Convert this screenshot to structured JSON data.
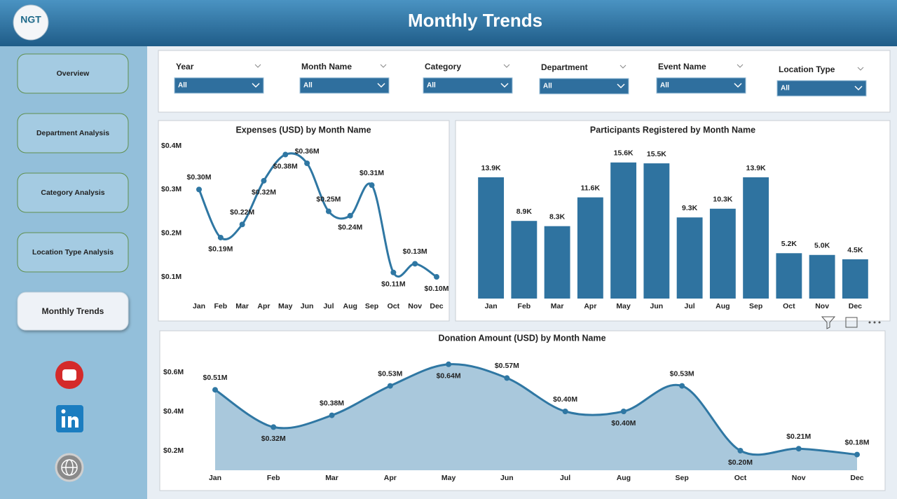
{
  "header": {
    "logo": "NGT",
    "title": "Monthly Trends"
  },
  "nav": [
    "Overview",
    "Department Analysis",
    "Category Analysis",
    "Location Type Analysis",
    "Monthly Trends"
  ],
  "filters": [
    {
      "label": "Year",
      "value": "All"
    },
    {
      "label": "Month Name",
      "value": "All"
    },
    {
      "label": "Category",
      "value": "All"
    },
    {
      "label": "Department",
      "value": "All"
    },
    {
      "label": "Event Name",
      "value": "All"
    },
    {
      "label": "Location Type",
      "value": "All"
    }
  ],
  "chart_data": [
    {
      "type": "line",
      "title": "Expenses (USD) by Month Name",
      "smooth": true,
      "color": "#2f77a3",
      "categories": [
        "Jan",
        "Feb",
        "Mar",
        "Apr",
        "May",
        "Jun",
        "Jul",
        "Aug",
        "Sep",
        "Oct",
        "Nov",
        "Dec"
      ],
      "values": [
        300000,
        190000,
        220000,
        320000,
        380000,
        360000,
        250000,
        240000,
        310000,
        110000,
        130000,
        100000
      ],
      "value_labels": [
        "$0.30M",
        "$0.19M",
        "$0.22M",
        "$0.32M",
        "$0.38M",
        "$0.36M",
        "$0.25M",
        "$0.24M",
        "$0.31M",
        "$0.11M",
        "$0.13M",
        "$0.10M"
      ],
      "ylim": [
        50000,
        420000
      ],
      "yticks": [
        {
          "value": 100000,
          "label": "$0.1M"
        },
        {
          "value": 200000,
          "label": "$0.2M"
        },
        {
          "value": 300000,
          "label": "$0.3M"
        },
        {
          "value": 400000,
          "label": "$0.4M"
        }
      ]
    },
    {
      "type": "bar",
      "title": "Participants Registered by Month Name",
      "color": "#2f73a0",
      "categories": [
        "Jan",
        "Feb",
        "Mar",
        "Apr",
        "May",
        "Jun",
        "Jul",
        "Aug",
        "Sep",
        "Oct",
        "Nov",
        "Dec"
      ],
      "values": [
        13900,
        8900,
        8300,
        11600,
        15600,
        15500,
        9300,
        10300,
        13900,
        5200,
        5000,
        4500
      ],
      "value_labels": [
        "13.9K",
        "8.9K",
        "8.3K",
        "11.6K",
        "15.6K",
        "15.5K",
        "9.3K",
        "10.3K",
        "13.9K",
        "5.2K",
        "5.0K",
        "4.5K"
      ],
      "ylim": [
        0,
        17000
      ]
    },
    {
      "type": "area",
      "title": "Donation Amount (USD) by Month Name",
      "smooth": true,
      "color": "#2f77a3",
      "fill_color": "#a9c8dc",
      "categories": [
        "Jan",
        "Feb",
        "Mar",
        "Apr",
        "May",
        "Jun",
        "Jul",
        "Aug",
        "Sep",
        "Oct",
        "Nov",
        "Dec"
      ],
      "values": [
        510000,
        320000,
        380000,
        530000,
        640000,
        570000,
        400000,
        400000,
        530000,
        200000,
        210000,
        180000
      ],
      "value_labels": [
        "$0.51M",
        "$0.32M",
        "$0.38M",
        "$0.53M",
        "$0.64M",
        "$0.57M",
        "$0.40M",
        "$0.40M",
        "$0.53M",
        "$0.20M",
        "$0.21M",
        "$0.18M"
      ],
      "ylim": [
        100000,
        700000
      ],
      "yticks": [
        {
          "value": 200000,
          "label": "$0.2M"
        },
        {
          "value": 400000,
          "label": "$0.4M"
        },
        {
          "value": 600000,
          "label": "$0.6M"
        }
      ]
    }
  ]
}
